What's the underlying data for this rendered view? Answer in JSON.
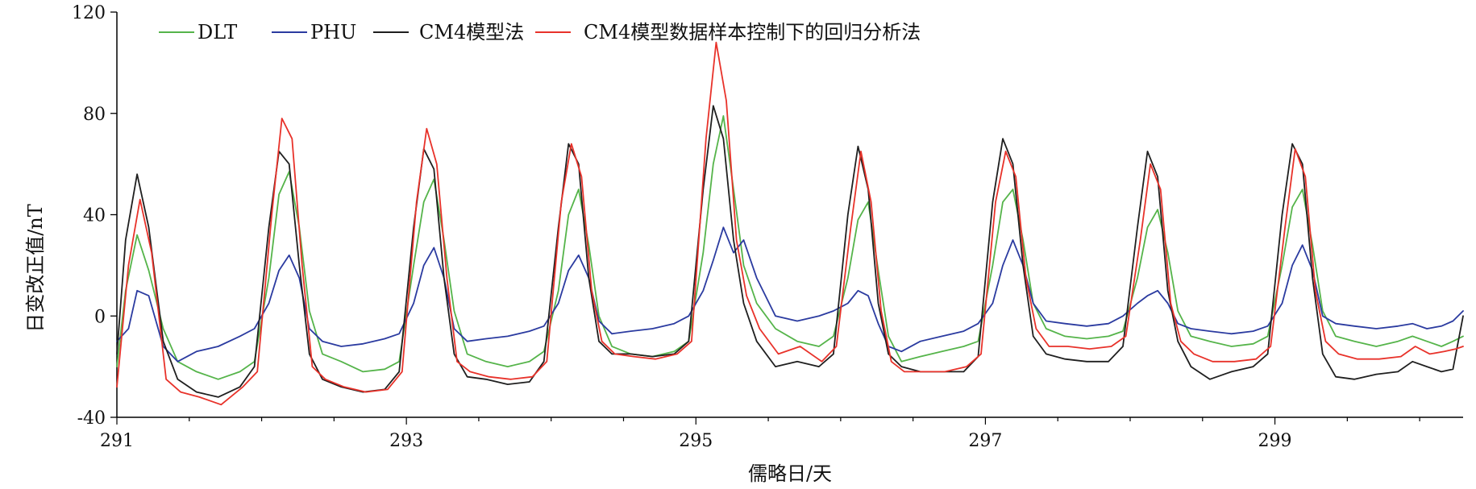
{
  "chart_data": {
    "type": "line",
    "xlabel": "儒略日/天",
    "ylabel": "日变改正值/nT",
    "xlim": [
      291,
      300.3
    ],
    "ylim": [
      -40,
      120
    ],
    "x_ticks": [
      291,
      293,
      295,
      297,
      299
    ],
    "y_ticks": [
      -40,
      0,
      40,
      80,
      120
    ],
    "legend_placement": "top-left",
    "grid": false,
    "series": [
      {
        "name": "DLT",
        "color": "#55b44a",
        "x": [
          291.0,
          291.06,
          291.14,
          291.22,
          291.32,
          291.42,
          291.55,
          291.7,
          291.85,
          291.95,
          292.05,
          292.12,
          292.19,
          292.26,
          292.33,
          292.42,
          292.55,
          292.7,
          292.85,
          292.95,
          293.05,
          293.12,
          293.19,
          293.26,
          293.33,
          293.42,
          293.55,
          293.7,
          293.85,
          293.95,
          294.05,
          294.12,
          294.19,
          294.26,
          294.33,
          294.42,
          294.55,
          294.7,
          294.85,
          294.95,
          295.05,
          295.12,
          295.19,
          295.26,
          295.33,
          295.42,
          295.55,
          295.7,
          295.85,
          295.95,
          296.05,
          296.12,
          296.19,
          296.26,
          296.33,
          296.42,
          296.55,
          296.7,
          296.85,
          296.95,
          297.05,
          297.12,
          297.19,
          297.26,
          297.33,
          297.42,
          297.55,
          297.7,
          297.85,
          297.95,
          298.05,
          298.12,
          298.19,
          298.26,
          298.33,
          298.42,
          298.55,
          298.7,
          298.85,
          298.95,
          299.05,
          299.12,
          299.19,
          299.26,
          299.33,
          299.42,
          299.55,
          299.7,
          299.85,
          299.95,
          300.05,
          300.15,
          300.23,
          300.3
        ],
        "y": [
          -20,
          10,
          32,
          18,
          -5,
          -18,
          -22,
          -25,
          -22,
          -18,
          15,
          48,
          57,
          35,
          2,
          -15,
          -18,
          -22,
          -21,
          -18,
          20,
          45,
          54,
          30,
          2,
          -15,
          -18,
          -20,
          -18,
          -14,
          10,
          40,
          50,
          28,
          0,
          -12,
          -15,
          -16,
          -14,
          -10,
          25,
          60,
          79,
          50,
          20,
          5,
          -5,
          -10,
          -12,
          -8,
          15,
          38,
          45,
          18,
          -8,
          -18,
          -16,
          -14,
          -12,
          -10,
          20,
          45,
          50,
          30,
          5,
          -5,
          -8,
          -9,
          -8,
          -6,
          15,
          35,
          42,
          25,
          2,
          -8,
          -10,
          -12,
          -11,
          -8,
          20,
          43,
          50,
          28,
          2,
          -8,
          -10,
          -12,
          -10,
          -8,
          -10,
          -12,
          -10,
          -8
        ]
      },
      {
        "name": "PHU",
        "color": "#2b3ba0",
        "x": [
          291.0,
          291.08,
          291.14,
          291.22,
          291.32,
          291.42,
          291.55,
          291.7,
          291.85,
          291.95,
          292.05,
          292.12,
          292.19,
          292.26,
          292.33,
          292.42,
          292.55,
          292.7,
          292.85,
          292.95,
          293.05,
          293.12,
          293.19,
          293.26,
          293.33,
          293.42,
          293.55,
          293.7,
          293.85,
          293.95,
          294.05,
          294.12,
          294.19,
          294.26,
          294.33,
          294.42,
          294.55,
          294.7,
          294.85,
          294.95,
          295.05,
          295.12,
          295.19,
          295.26,
          295.33,
          295.42,
          295.55,
          295.7,
          295.85,
          295.95,
          296.05,
          296.12,
          296.19,
          296.26,
          296.33,
          296.42,
          296.55,
          296.7,
          296.85,
          296.95,
          297.05,
          297.12,
          297.19,
          297.26,
          297.33,
          297.42,
          297.55,
          297.7,
          297.85,
          297.95,
          298.05,
          298.12,
          298.19,
          298.26,
          298.33,
          298.42,
          298.55,
          298.7,
          298.85,
          298.95,
          299.05,
          299.12,
          299.19,
          299.26,
          299.33,
          299.42,
          299.55,
          299.7,
          299.85,
          299.95,
          300.05,
          300.15,
          300.23,
          300.3
        ],
        "y": [
          -10,
          -5,
          10,
          8,
          -12,
          -18,
          -14,
          -12,
          -8,
          -5,
          5,
          18,
          24,
          15,
          -5,
          -10,
          -12,
          -11,
          -9,
          -7,
          5,
          20,
          27,
          15,
          -5,
          -10,
          -9,
          -8,
          -6,
          -4,
          5,
          18,
          24,
          15,
          -2,
          -7,
          -6,
          -5,
          -3,
          0,
          10,
          22,
          35,
          25,
          30,
          15,
          0,
          -2,
          0,
          2,
          5,
          10,
          8,
          -3,
          -12,
          -14,
          -10,
          -8,
          -6,
          -3,
          5,
          20,
          30,
          20,
          5,
          -2,
          -3,
          -4,
          -3,
          0,
          5,
          8,
          10,
          5,
          -3,
          -5,
          -6,
          -7,
          -6,
          -4,
          5,
          20,
          28,
          18,
          0,
          -3,
          -4,
          -5,
          -4,
          -3,
          -5,
          -4,
          -2,
          2
        ]
      },
      {
        "name": "CM4模型法",
        "color": "#1f1f1f",
        "x": [
          291.0,
          291.06,
          291.14,
          291.22,
          291.32,
          291.42,
          291.55,
          291.7,
          291.85,
          291.95,
          292.05,
          292.12,
          292.19,
          292.26,
          292.33,
          292.42,
          292.55,
          292.7,
          292.85,
          292.95,
          293.05,
          293.12,
          293.19,
          293.26,
          293.33,
          293.42,
          293.55,
          293.7,
          293.85,
          293.95,
          294.05,
          294.12,
          294.19,
          294.26,
          294.33,
          294.42,
          294.55,
          294.7,
          294.85,
          294.95,
          295.05,
          295.12,
          295.19,
          295.26,
          295.33,
          295.42,
          295.55,
          295.7,
          295.85,
          295.95,
          296.05,
          296.12,
          296.19,
          296.26,
          296.33,
          296.42,
          296.55,
          296.7,
          296.85,
          296.95,
          297.05,
          297.12,
          297.19,
          297.26,
          297.33,
          297.42,
          297.55,
          297.7,
          297.85,
          297.95,
          298.05,
          298.12,
          298.19,
          298.26,
          298.33,
          298.42,
          298.55,
          298.7,
          298.85,
          298.95,
          299.05,
          299.12,
          299.19,
          299.26,
          299.33,
          299.42,
          299.55,
          299.7,
          299.85,
          299.95,
          300.05,
          300.15,
          300.23,
          300.3
        ],
        "y": [
          -15,
          30,
          56,
          35,
          -10,
          -25,
          -30,
          -32,
          -28,
          -20,
          35,
          65,
          60,
          20,
          -15,
          -25,
          -28,
          -30,
          -29,
          -22,
          35,
          66,
          58,
          15,
          -15,
          -24,
          -25,
          -27,
          -26,
          -18,
          35,
          68,
          60,
          15,
          -10,
          -15,
          -15,
          -16,
          -15,
          -10,
          50,
          83,
          70,
          30,
          5,
          -10,
          -20,
          -18,
          -20,
          -15,
          40,
          67,
          50,
          5,
          -15,
          -20,
          -22,
          -22,
          -22,
          -16,
          45,
          70,
          60,
          20,
          -8,
          -15,
          -17,
          -18,
          -18,
          -12,
          35,
          65,
          55,
          10,
          -10,
          -20,
          -25,
          -22,
          -20,
          -15,
          40,
          68,
          60,
          15,
          -15,
          -24,
          -25,
          -23,
          -22,
          -18,
          -20,
          -22,
          -21,
          0
        ]
      },
      {
        "name": "CM4模型数据样本控制下的回归分析法",
        "color": "#e8322a",
        "x": [
          291.0,
          291.08,
          291.16,
          291.24,
          291.34,
          291.44,
          291.57,
          291.72,
          291.87,
          291.97,
          292.07,
          292.14,
          292.21,
          292.28,
          292.35,
          292.44,
          292.57,
          292.72,
          292.87,
          292.97,
          293.07,
          293.14,
          293.21,
          293.28,
          293.35,
          293.44,
          293.57,
          293.72,
          293.87,
          293.97,
          294.07,
          294.14,
          294.21,
          294.28,
          294.35,
          294.44,
          294.57,
          294.72,
          294.87,
          294.97,
          295.07,
          295.14,
          295.21,
          295.28,
          295.35,
          295.44,
          295.57,
          295.72,
          295.87,
          295.97,
          296.07,
          296.14,
          296.21,
          296.28,
          296.35,
          296.44,
          296.57,
          296.72,
          296.87,
          296.97,
          297.07,
          297.14,
          297.21,
          297.28,
          297.35,
          297.44,
          297.57,
          297.72,
          297.87,
          297.97,
          298.07,
          298.14,
          298.21,
          298.28,
          298.35,
          298.44,
          298.57,
          298.72,
          298.87,
          298.97,
          299.07,
          299.14,
          299.21,
          299.28,
          299.35,
          299.44,
          299.57,
          299.72,
          299.87,
          299.97,
          300.07,
          300.17,
          300.25,
          300.3
        ],
        "y": [
          -28,
          20,
          46,
          25,
          -25,
          -30,
          -32,
          -35,
          -28,
          -22,
          40,
          78,
          70,
          20,
          -20,
          -25,
          -28,
          -30,
          -29,
          -22,
          45,
          74,
          60,
          15,
          -18,
          -22,
          -24,
          -25,
          -24,
          -18,
          45,
          68,
          55,
          10,
          -10,
          -15,
          -16,
          -17,
          -15,
          -10,
          70,
          108,
          85,
          30,
          8,
          -5,
          -15,
          -12,
          -18,
          -12,
          35,
          65,
          45,
          2,
          -18,
          -22,
          -22,
          -22,
          -20,
          -15,
          45,
          65,
          55,
          15,
          -5,
          -12,
          -12,
          -13,
          -12,
          -8,
          30,
          60,
          50,
          5,
          -10,
          -15,
          -18,
          -18,
          -17,
          -12,
          35,
          66,
          55,
          10,
          -10,
          -15,
          -17,
          -17,
          -16,
          -12,
          -15,
          -14,
          -13,
          -12
        ]
      }
    ]
  }
}
